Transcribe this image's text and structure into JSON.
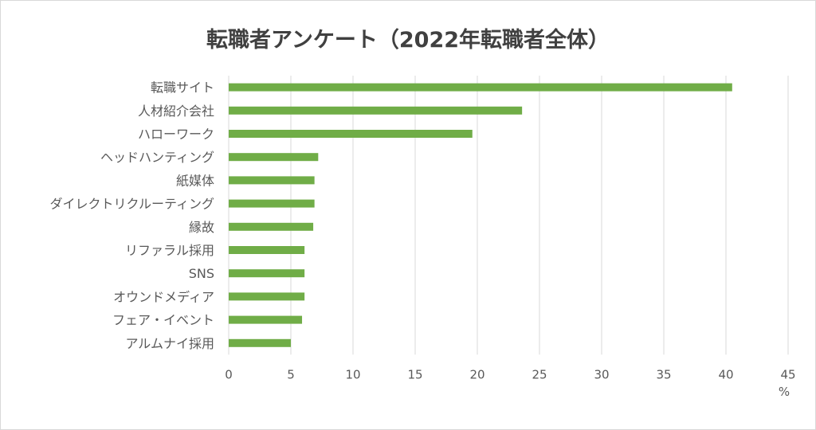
{
  "chart_data": {
    "type": "bar",
    "orientation": "horizontal",
    "title": "転職者アンケート（2022年転職者全体）",
    "xlabel": "%",
    "ylabel": "",
    "xlim": [
      0,
      45
    ],
    "xticks": [
      0,
      5,
      10,
      15,
      20,
      25,
      30,
      35,
      40,
      45
    ],
    "grid": true,
    "bar_color": "#70ad47",
    "categories": [
      "転職サイト",
      "人材紹介会社",
      "ハローワーク",
      "ヘッドハンティング",
      "紙媒体",
      "ダイレクトリクルーティング",
      "縁故",
      "リファラル採用",
      "SNS",
      "オウンドメディア",
      "フェア・イベント",
      "アルムナイ採用"
    ],
    "values": [
      40.5,
      23.6,
      19.6,
      7.2,
      6.9,
      6.9,
      6.8,
      6.1,
      6.1,
      6.1,
      5.9,
      5.0
    ]
  }
}
